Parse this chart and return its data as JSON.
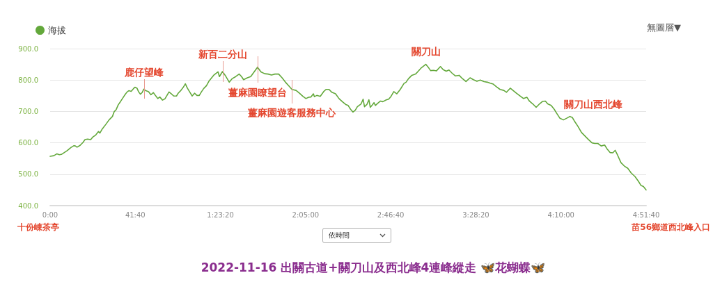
{
  "chart_data": {
    "type": "line",
    "title": "2022-11-16 出關古道+關刀山及西北峰4連峰縱走 🦋花蝴蝶🦋",
    "x": [
      0,
      110,
      200,
      270,
      330,
      400,
      500,
      610,
      700,
      740,
      790,
      880,
      970,
      1020,
      1100,
      1190,
      1250,
      1340,
      1420,
      1460,
      1530,
      1630,
      1730,
      1830,
      1880,
      1940,
      2000,
      2070,
      2160,
      2210,
      2260,
      2310,
      2380,
      2450,
      2490,
      2550,
      2600,
      2650,
      2700,
      2750,
      2810,
      2890,
      2960,
      3030,
      3090,
      3160,
      3220,
      3300,
      3370,
      3490,
      3560,
      3630,
      3710,
      3760,
      3840,
      3910,
      3970,
      4030,
      4120,
      4170,
      4240,
      4310,
      4380,
      4440,
      4510,
      4590,
      4660,
      4800,
      4930,
      4970,
      5060,
      5140,
      5260,
      5340,
      5450,
      5550,
      5620,
      5680,
      5790,
      5890,
      5990,
      6090,
      6190,
      6300,
      6400,
      6500,
      6600,
      6710,
      6810,
      6910,
      7010,
      7100,
      7220,
      7320,
      7420,
      7510,
      7590,
      7660,
      7730,
      7760,
      7830,
      7930,
      8030,
      8100,
      8190,
      8270,
      8380,
      8480,
      8580,
      8680,
      8750,
      8820,
      8890,
      8960,
      9020,
      9130,
      9190,
      9230,
      9300,
      9360,
      9400,
      9470,
      9510,
      9550,
      9620,
      9700,
      9770,
      9870,
      9940,
      10010,
      10090,
      10180,
      10280,
      10390,
      10450,
      10520,
      10620,
      10730,
      10790,
      10900,
      11030,
      11100,
      11170,
      11260,
      11340,
      11460,
      11540,
      11630,
      11710,
      11800,
      11900,
      12010,
      12100,
      12210,
      12330,
      12430,
      12530,
      12630,
      12740,
      12840,
      12920,
      13010,
      13110,
      13210,
      13320,
      13400,
      13510,
      13590,
      13690,
      13790,
      13900,
      14000,
      14070,
      14170,
      14270,
      14370,
      14460,
      14540,
      14610,
      14710,
      14800,
      14880,
      14970,
      15070,
      15160,
      15260,
      15330,
      15390,
      15500,
      15600,
      15700,
      15800,
      15910,
      15990,
      16080,
      16180,
      16280,
      16350,
      16440,
      16520,
      16590,
      16660,
      16760,
      16860,
      16960,
      17060,
      17170,
      17270,
      17350,
      17420,
      17500
    ],
    "series": [
      {
        "name": "海拔",
        "color": "#63a83b",
        "values": [
          557,
          559,
          565,
          562,
          563,
          568,
          575,
          585,
          591,
          590,
          586,
          592,
          602,
          610,
          612,
          610,
          618,
          625,
          636,
          631,
          644,
          658,
          673,
          684,
          699,
          706,
          721,
          732,
          747,
          755,
          762,
          766,
          764,
          773,
          777,
          774,
          762,
          755,
          760,
          771,
          766,
          763,
          753,
          760,
          751,
          741,
          746,
          736,
          740,
          762,
          756,
          749,
          749,
          758,
          767,
          777,
          788,
          774,
          758,
          749,
          758,
          751,
          751,
          762,
          773,
          782,
          796,
          815,
          826,
          811,
          827,
          815,
          793,
          804,
          811,
          819,
          811,
          801,
          807,
          811,
          826,
          841,
          826,
          820,
          819,
          816,
          819,
          819,
          807,
          793,
          781,
          770,
          767,
          758,
          748,
          741,
          745,
          746,
          756,
          747,
          751,
          748,
          763,
          770,
          770,
          761,
          756,
          741,
          731,
          722,
          719,
          707,
          698,
          704,
          715,
          724,
          739,
          715,
          722,
          737,
          713,
          722,
          728,
          719,
          726,
          733,
          731,
          737,
          739,
          748,
          763,
          756,
          770,
          789,
          793,
          804,
          815,
          819,
          826,
          839,
          850,
          841,
          830,
          831,
          829,
          843,
          833,
          828,
          832,
          822,
          813,
          815,
          805,
          795,
          807,
          801,
          796,
          800,
          795,
          793,
          790,
          787,
          778,
          770,
          767,
          761,
          774,
          767,
          758,
          750,
          741,
          745,
          733,
          724,
          713,
          724,
          732,
          733,
          724,
          719,
          707,
          693,
          678,
          673,
          678,
          684,
          681,
          670,
          652,
          633,
          622,
          611,
          600,
          598,
          598,
          590,
          593,
          581,
          569,
          568,
          576,
          561,
          537,
          526,
          519,
          504,
          493,
          478,
          464,
          461,
          450
        ]
      }
    ],
    "xlim": [
      0,
      17500
    ],
    "xticks": [
      {
        "value": 0,
        "label": "0:00"
      },
      {
        "value": 2500,
        "label": "41:40"
      },
      {
        "value": 5000,
        "label": "1:23:20"
      },
      {
        "value": 7500,
        "label": "2:05:00"
      },
      {
        "value": 10000,
        "label": "2:46:40"
      },
      {
        "value": 12500,
        "label": "3:28:20"
      },
      {
        "value": 15000,
        "label": "4:10:00"
      },
      {
        "value": 17500,
        "label": "4:51:40"
      }
    ],
    "ylim": [
      400,
      900
    ],
    "yticks": [
      {
        "value": 400,
        "label": "400.0"
      },
      {
        "value": 500,
        "label": "500.0"
      },
      {
        "value": 600,
        "label": "600.0"
      },
      {
        "value": 700,
        "label": "700.0"
      },
      {
        "value": 800,
        "label": "800.0"
      },
      {
        "value": 900,
        "label": "900.0"
      }
    ],
    "grid": "y",
    "legend": "top left",
    "marker": "none",
    "annotations": [
      {
        "text": "鹿仔望峰",
        "x": 2750,
        "y": 771
      },
      {
        "text": "新百二分山",
        "x": 5060,
        "y": 827
      },
      {
        "text": "薑麻園瞭望台",
        "x": 6090,
        "y": 841
      },
      {
        "text": "薑麻園遊客服務中心",
        "x": 7100,
        "y": 770
      },
      {
        "text": "關刀山",
        "x": 11030,
        "y": 850
      },
      {
        "text": "關刀山西北峰",
        "x": 15260,
        "y": 684
      },
      "十份崠茶亭",
      "苗56鄉道西北峰入口",
      "無圖層▼",
      "依時間"
    ]
  }
}
